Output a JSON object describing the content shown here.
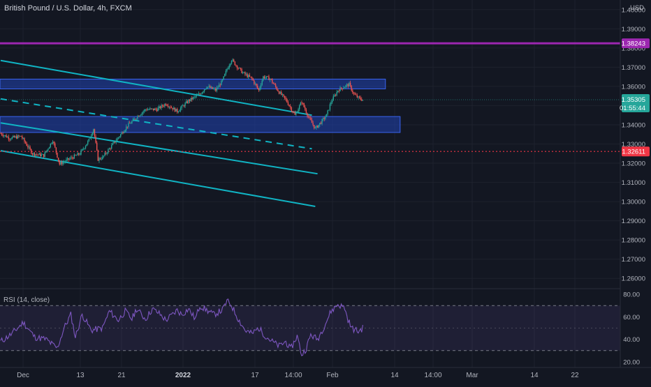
{
  "header": {
    "title": "British Pound / U.S. Dollar, 4h, FXCM"
  },
  "price_axis": {
    "currency": "USD",
    "ticks": [
      "1.40000",
      "1.39000",
      "1.38000",
      "1.37000",
      "1.36000",
      "1.35000",
      "1.34000",
      "1.33000",
      "1.32000",
      "1.31000",
      "1.30000",
      "1.29000",
      "1.28000",
      "1.27000",
      "1.26000"
    ],
    "tick_values": [
      1.4,
      1.39,
      1.38,
      1.37,
      1.36,
      1.35,
      1.34,
      1.33,
      1.32,
      1.31,
      1.3,
      1.29,
      1.28,
      1.27,
      1.26
    ],
    "hline_label": "1.38243",
    "hline_value": 1.38243,
    "last_price_label": "1.35305",
    "last_price_value": 1.35305,
    "countdown": "01:55:44",
    "dotted_label": "1.32611",
    "dotted_value": 1.32611
  },
  "rsi": {
    "title": "RSI (14, close)",
    "ticks": [
      "80.00",
      "60.00",
      "40.00",
      "20.00"
    ],
    "tick_values": [
      80,
      60,
      40,
      20
    ],
    "upper_band": 70,
    "lower_band": 30,
    "mid": 50
  },
  "time_axis": {
    "labels": [
      "Dec",
      "13",
      "21",
      "2022",
      "17",
      "14:00",
      "Feb",
      "14",
      "14:00",
      "Mar",
      "14",
      "22"
    ],
    "bold": [
      "2022"
    ]
  },
  "colors": {
    "background": "#131722",
    "grid": "#1e222d",
    "up": "#26a69a",
    "down": "#ef5350",
    "channel": "#10b4c4",
    "zone_fill": "#1f3fa8",
    "zone_border": "#3a64f0",
    "resistance_line": "#9c27b0",
    "rsi_line": "#7e57c2",
    "rsi_band": "rgba(126,87,194,0.12)",
    "last_price": "#26a69a",
    "dotted_line": "#f23645"
  },
  "chart_data": {
    "type": "candlestick",
    "symbol": "British Pound / U.S. Dollar",
    "interval": "4h",
    "exchange": "FXCM",
    "y_range": [
      1.255,
      1.405
    ],
    "rsi_range": [
      15,
      85
    ],
    "waypoints": [
      [
        0,
        1.3355
      ],
      [
        8,
        1.333
      ],
      [
        18,
        1.334
      ],
      [
        28,
        1.325
      ],
      [
        38,
        1.324
      ],
      [
        46,
        1.332
      ],
      [
        52,
        1.3195
      ],
      [
        60,
        1.322
      ],
      [
        70,
        1.325
      ],
      [
        78,
        1.332
      ],
      [
        82,
        1.338
      ],
      [
        86,
        1.322
      ],
      [
        90,
        1.323
      ],
      [
        100,
        1.3305
      ],
      [
        112,
        1.3395
      ],
      [
        122,
        1.345
      ],
      [
        128,
        1.348
      ],
      [
        138,
        1.348
      ],
      [
        146,
        1.351
      ],
      [
        156,
        1.347
      ],
      [
        166,
        1.3525
      ],
      [
        176,
        1.356
      ],
      [
        182,
        1.36
      ],
      [
        190,
        1.358
      ],
      [
        196,
        1.363
      ],
      [
        200,
        1.369
      ],
      [
        204,
        1.374
      ],
      [
        208,
        1.371
      ],
      [
        214,
        1.367
      ],
      [
        222,
        1.364
      ],
      [
        228,
        1.358
      ],
      [
        232,
        1.365
      ],
      [
        238,
        1.364
      ],
      [
        246,
        1.357
      ],
      [
        252,
        1.353
      ],
      [
        260,
        1.345
      ],
      [
        266,
        1.352
      ],
      [
        272,
        1.344
      ],
      [
        278,
        1.338
      ],
      [
        284,
        1.342
      ],
      [
        288,
        1.345
      ],
      [
        292,
        1.352
      ],
      [
        298,
        1.358
      ],
      [
        304,
        1.36
      ],
      [
        308,
        1.361
      ],
      [
        312,
        1.356
      ],
      [
        316,
        1.354
      ],
      [
        320,
        1.353
      ]
    ],
    "trendlines": [
      {
        "style": "solid",
        "start": [
          0,
          1.3735
        ],
        "end": [
          275,
          1.345
        ]
      },
      {
        "style": "dashed",
        "start": [
          0,
          1.3535
        ],
        "end": [
          275,
          1.3275
        ]
      },
      {
        "style": "solid",
        "start": [
          0,
          1.341
        ],
        "end": [
          280,
          1.3145
        ]
      },
      {
        "style": "solid",
        "start": [
          0,
          1.3265
        ],
        "end": [
          278,
          1.2975
        ]
      }
    ],
    "zones": [
      {
        "from": 1.3587,
        "to": 1.3638,
        "x_end": 340
      },
      {
        "from": 1.336,
        "to": 1.3443,
        "x_end": 353
      }
    ],
    "rsi_waypoints": [
      [
        0,
        38
      ],
      [
        10,
        45
      ],
      [
        20,
        55
      ],
      [
        30,
        42
      ],
      [
        40,
        40
      ],
      [
        50,
        32
      ],
      [
        56,
        50
      ],
      [
        62,
        62
      ],
      [
        66,
        42
      ],
      [
        72,
        62
      ],
      [
        80,
        48
      ],
      [
        90,
        50
      ],
      [
        96,
        65
      ],
      [
        104,
        57
      ],
      [
        110,
        65
      ],
      [
        116,
        58
      ],
      [
        120,
        67
      ],
      [
        128,
        58
      ],
      [
        134,
        67
      ],
      [
        140,
        63
      ],
      [
        146,
        57
      ],
      [
        152,
        62
      ],
      [
        156,
        66
      ],
      [
        160,
        62
      ],
      [
        166,
        67
      ],
      [
        172,
        58
      ],
      [
        176,
        70
      ],
      [
        182,
        66
      ],
      [
        188,
        62
      ],
      [
        196,
        66
      ],
      [
        200,
        74
      ],
      [
        204,
        70
      ],
      [
        210,
        58
      ],
      [
        216,
        48
      ],
      [
        222,
        45
      ],
      [
        228,
        50
      ],
      [
        234,
        43
      ],
      [
        240,
        38
      ],
      [
        246,
        34
      ],
      [
        252,
        38
      ],
      [
        256,
        31
      ],
      [
        262,
        43
      ],
      [
        266,
        26
      ],
      [
        270,
        32
      ],
      [
        274,
        44
      ],
      [
        280,
        40
      ],
      [
        286,
        52
      ],
      [
        292,
        65
      ],
      [
        298,
        71
      ],
      [
        304,
        68
      ],
      [
        306,
        60
      ],
      [
        310,
        50
      ],
      [
        316,
        47
      ],
      [
        320,
        50
      ]
    ],
    "bars": 321
  }
}
